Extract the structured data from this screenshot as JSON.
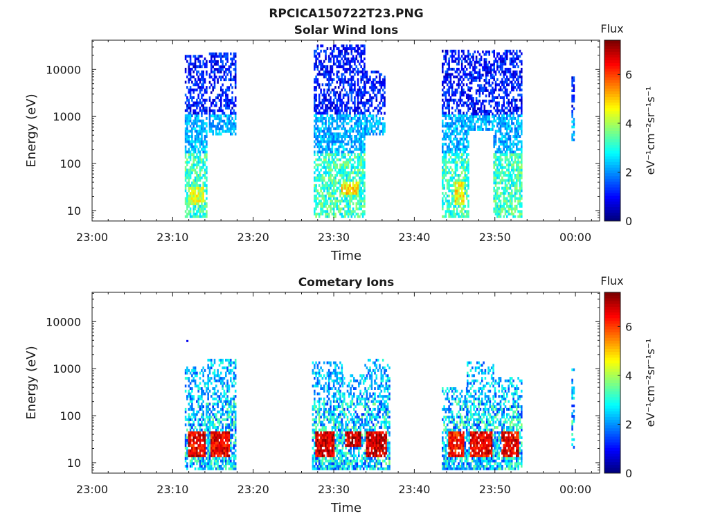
{
  "figure_title": "RPCICA150722T23.PNG",
  "colormap": [
    "#000080",
    "#0000ff",
    "#0080ff",
    "#00ffff",
    "#80ff80",
    "#ffff00",
    "#ff8000",
    "#ff0000",
    "#800000"
  ],
  "chart_data": [
    {
      "type": "heatmap",
      "title": "Solar Wind Ions",
      "xlabel": "Time",
      "ylabel": "Energy (eV)",
      "y_scale": "log",
      "ylim": [
        6,
        42000
      ],
      "x_ticks": [
        "23:00",
        "23:10",
        "23:20",
        "23:30",
        "23:40",
        "23:50",
        "00:00"
      ],
      "y_ticks": [
        "10",
        "100",
        "1000",
        "10000"
      ],
      "colorbar": {
        "label": "Flux",
        "unit": "eV⁻¹cm⁻²sr⁻¹s⁻¹",
        "range": [
          0,
          7.4
        ],
        "ticks": [
          "0",
          "2",
          "4",
          "6"
        ]
      },
      "bursts": [
        {
          "t0": 11.5,
          "t1": 14.2,
          "emin": 7,
          "emax": 18000,
          "hot": [
            [
              11.8,
              13.8,
              12,
              30,
              4.3
            ]
          ]
        },
        {
          "t0": 14.5,
          "t1": 17.8,
          "emin": 400,
          "emax": 22000,
          "hot": []
        },
        {
          "t0": 27.5,
          "t1": 33.8,
          "emin": 7,
          "emax": 30000,
          "hot": [
            [
              30.8,
              33.0,
              20,
              40,
              4.8
            ]
          ]
        },
        {
          "t0": 33.8,
          "t1": 36.3,
          "emin": 400,
          "emax": 9000,
          "hot": []
        },
        {
          "t0": 43.4,
          "t1": 46.8,
          "emin": 7,
          "emax": 24000,
          "hot": [
            [
              45.0,
              46.2,
              12,
              40,
              4.6
            ]
          ]
        },
        {
          "t0": 46.8,
          "t1": 49.8,
          "emin": 500,
          "emax": 24000,
          "hot": []
        },
        {
          "t0": 49.8,
          "t1": 53.3,
          "emin": 7,
          "emax": 24000,
          "hot": []
        },
        {
          "t0": 59.5,
          "t1": 59.9,
          "emin": 300,
          "emax": 7000,
          "hot": []
        }
      ]
    },
    {
      "type": "heatmap",
      "title": "Cometary Ions",
      "xlabel": "Time",
      "ylabel": "Energy (eV)",
      "y_scale": "log",
      "ylim": [
        6,
        42000
      ],
      "x_ticks": [
        "23:00",
        "23:10",
        "23:20",
        "23:30",
        "23:40",
        "23:50",
        "00:00"
      ],
      "y_ticks": [
        "10",
        "100",
        "1000",
        "10000"
      ],
      "colorbar": {
        "label": "Flux",
        "unit": "eV⁻¹cm⁻²sr⁻¹s⁻¹",
        "range": [
          0,
          7.4
        ],
        "ticks": [
          "0",
          "2",
          "4",
          "6"
        ]
      },
      "bursts": [
        {
          "t0": 11.5,
          "t1": 14.3,
          "emin": 7,
          "emax": 1100,
          "hot": [
            [
              11.8,
              14.0,
              12,
              42,
              6.6
            ]
          ]
        },
        {
          "t0": 14.3,
          "t1": 17.8,
          "emin": 7,
          "emax": 1500,
          "hot": [
            [
              14.6,
              17.0,
              12,
              42,
              6.6
            ]
          ]
        },
        {
          "t0": 27.3,
          "t1": 31.0,
          "emin": 7,
          "emax": 1300,
          "hot": [
            [
              27.6,
              30.0,
              12,
              42,
              6.8
            ]
          ]
        },
        {
          "t0": 31.0,
          "t1": 33.8,
          "emin": 7,
          "emax": 700,
          "hot": [
            [
              31.3,
              33.3,
              20,
              42,
              6.8
            ]
          ]
        },
        {
          "t0": 33.8,
          "t1": 37.0,
          "emin": 7,
          "emax": 1500,
          "hot": [
            [
              34.0,
              36.6,
              12,
              42,
              6.8
            ]
          ]
        },
        {
          "t0": 43.4,
          "t1": 46.5,
          "emin": 7,
          "emax": 400,
          "hot": [
            [
              44.2,
              46.2,
              12,
              42,
              6.4
            ]
          ]
        },
        {
          "t0": 46.5,
          "t1": 50.0,
          "emin": 7,
          "emax": 1400,
          "hot": [
            [
              46.8,
              49.6,
              12,
              42,
              6.6
            ]
          ]
        },
        {
          "t0": 50.0,
          "t1": 53.3,
          "emin": 7,
          "emax": 600,
          "hot": [
            [
              50.8,
              53.0,
              12,
              42,
              6.6
            ]
          ]
        },
        {
          "t0": 59.5,
          "t1": 59.9,
          "emin": 20,
          "emax": 1000,
          "hot": []
        }
      ],
      "isolated_points": [
        {
          "t": 11.7,
          "e": 3800,
          "level": 0.8
        }
      ]
    }
  ]
}
